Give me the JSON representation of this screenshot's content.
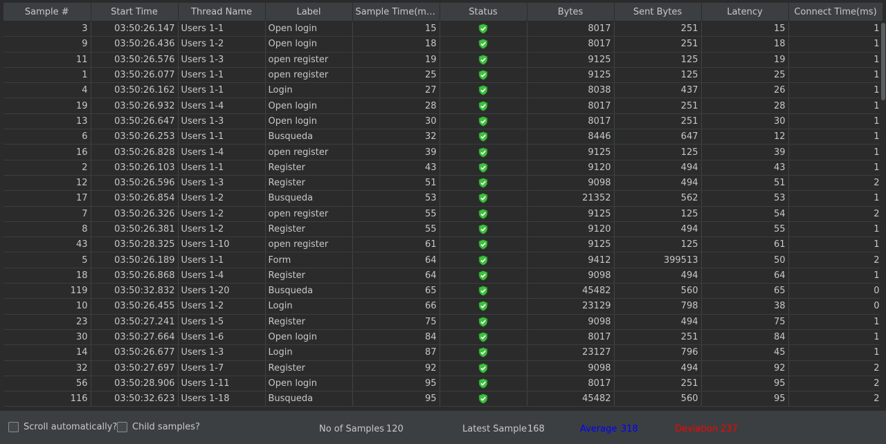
{
  "columns": [
    "Sample #",
    "Start Time",
    "Thread Name",
    "Label",
    "Sample Time(m…",
    "Status",
    "Bytes",
    "Sent Bytes",
    "Latency",
    "Connect Time(ms)"
  ],
  "sort_indicator": "↑",
  "rows": [
    [
      "3",
      "03:50:26.147",
      "Users 1-1",
      "Open login",
      "15",
      "8017",
      "251",
      "15",
      "1"
    ],
    [
      "9",
      "03:50:26.436",
      "Users 1-2",
      "Open login",
      "18",
      "8017",
      "251",
      "18",
      "1"
    ],
    [
      "11",
      "03:50:26.576",
      "Users 1-3",
      "open register",
      "19",
      "9125",
      "125",
      "19",
      "1"
    ],
    [
      "1",
      "03:50:26.077",
      "Users 1-1",
      "open register",
      "25",
      "9125",
      "125",
      "25",
      "1"
    ],
    [
      "4",
      "03:50:26.162",
      "Users 1-1",
      "Login",
      "27",
      "8038",
      "437",
      "26",
      "1"
    ],
    [
      "19",
      "03:50:26.932",
      "Users 1-4",
      "Open login",
      "28",
      "8017",
      "251",
      "28",
      "1"
    ],
    [
      "13",
      "03:50:26.647",
      "Users 1-3",
      "Open login",
      "30",
      "8017",
      "251",
      "30",
      "1"
    ],
    [
      "6",
      "03:50:26.253",
      "Users 1-1",
      "Busqueda",
      "32",
      "8446",
      "647",
      "12",
      "1"
    ],
    [
      "16",
      "03:50:26.828",
      "Users 1-4",
      "open register",
      "39",
      "9125",
      "125",
      "39",
      "1"
    ],
    [
      "2",
      "03:50:26.103",
      "Users 1-1",
      "Register",
      "43",
      "9120",
      "494",
      "43",
      "1"
    ],
    [
      "12",
      "03:50:26.596",
      "Users 1-3",
      "Register",
      "51",
      "9098",
      "494",
      "51",
      "2"
    ],
    [
      "17",
      "03:50:26.854",
      "Users 1-2",
      "Busqueda",
      "53",
      "21352",
      "562",
      "53",
      "1"
    ],
    [
      "7",
      "03:50:26.326",
      "Users 1-2",
      "open register",
      "55",
      "9125",
      "125",
      "54",
      "2"
    ],
    [
      "8",
      "03:50:26.381",
      "Users 1-2",
      "Register",
      "55",
      "9120",
      "494",
      "55",
      "1"
    ],
    [
      "43",
      "03:50:28.325",
      "Users 1-10",
      "open register",
      "61",
      "9125",
      "125",
      "61",
      "1"
    ],
    [
      "5",
      "03:50:26.189",
      "Users 1-1",
      "Form",
      "64",
      "9412",
      "399513",
      "50",
      "2"
    ],
    [
      "18",
      "03:50:26.868",
      "Users 1-4",
      "Register",
      "64",
      "9098",
      "494",
      "64",
      "1"
    ],
    [
      "119",
      "03:50:32.832",
      "Users 1-20",
      "Busqueda",
      "65",
      "45482",
      "560",
      "65",
      "0"
    ],
    [
      "10",
      "03:50:26.455",
      "Users 1-2",
      "Login",
      "66",
      "23129",
      "798",
      "38",
      "0"
    ],
    [
      "23",
      "03:50:27.241",
      "Users 1-5",
      "Register",
      "75",
      "9098",
      "494",
      "75",
      "1"
    ],
    [
      "30",
      "03:50:27.664",
      "Users 1-6",
      "Open login",
      "84",
      "8017",
      "251",
      "84",
      "1"
    ],
    [
      "14",
      "03:50:26.677",
      "Users 1-3",
      "Login",
      "87",
      "23127",
      "796",
      "45",
      "1"
    ],
    [
      "32",
      "03:50:27.697",
      "Users 1-7",
      "Register",
      "92",
      "9098",
      "494",
      "92",
      "2"
    ],
    [
      "56",
      "03:50:28.906",
      "Users 1-11",
      "Open login",
      "95",
      "8017",
      "251",
      "95",
      "2"
    ],
    [
      "116",
      "03:50:32.623",
      "Users 1-18",
      "Busqueda",
      "95",
      "45482",
      "560",
      "95",
      "2"
    ]
  ],
  "status_icon": "shield-check-icon",
  "status_color": "#3fbf3f",
  "footer": {
    "scroll_label": "Scroll automatically?",
    "child_label": "Child samples?",
    "samples_label": "No of Samples",
    "samples_value": "120",
    "latest_label": "Latest Sample",
    "latest_value": "168",
    "average_label": "Average",
    "average_value": "318",
    "average_color": "#0000ff",
    "deviation_label": "Deviation",
    "deviation_value": "237",
    "deviation_color": "#ff0000"
  }
}
